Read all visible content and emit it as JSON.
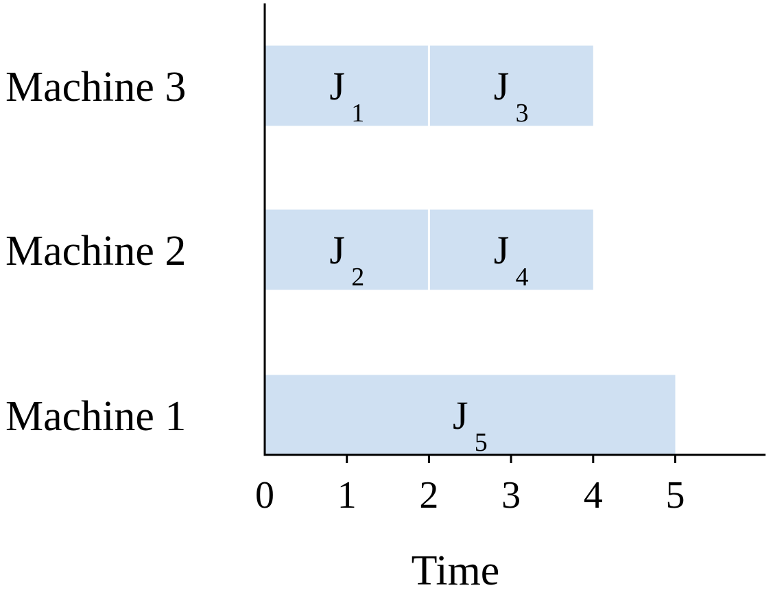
{
  "chart_data": {
    "type": "gantt",
    "xlabel": "Time",
    "x_ticks": [
      0,
      1,
      2,
      3,
      4,
      5
    ],
    "xlim": [
      0,
      6.1
    ],
    "grid": false,
    "bar_color": "#cfe0f2",
    "rows": [
      {
        "label": "Machine 3",
        "tasks": [
          {
            "name": "J",
            "sub": "1",
            "start": 0,
            "end": 2
          },
          {
            "name": "J",
            "sub": "3",
            "start": 2,
            "end": 4
          }
        ]
      },
      {
        "label": "Machine 2",
        "tasks": [
          {
            "name": "J",
            "sub": "2",
            "start": 0,
            "end": 2
          },
          {
            "name": "J",
            "sub": "4",
            "start": 2,
            "end": 4
          }
        ]
      },
      {
        "label": "Machine 1",
        "tasks": [
          {
            "name": "J",
            "sub": "5",
            "start": 0,
            "end": 5
          }
        ]
      }
    ]
  }
}
